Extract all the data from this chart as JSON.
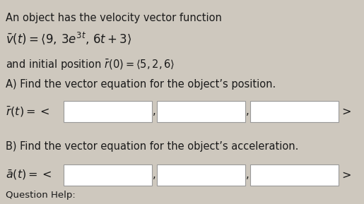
{
  "bg_color": "#cec8be",
  "text_color": "#1a1a1a",
  "line1": "An object has the velocity vector function",
  "line4": "A) Find the vector equation for the object’s position.",
  "line6": "B) Find the vector equation for the object’s acceleration.",
  "bottom_text": "Question Help:",
  "box_color": "#ffffff",
  "box_edge_color": "#999999",
  "font_size": 10.5,
  "fig_width": 5.15,
  "fig_height": 2.89,
  "dpi": 100
}
